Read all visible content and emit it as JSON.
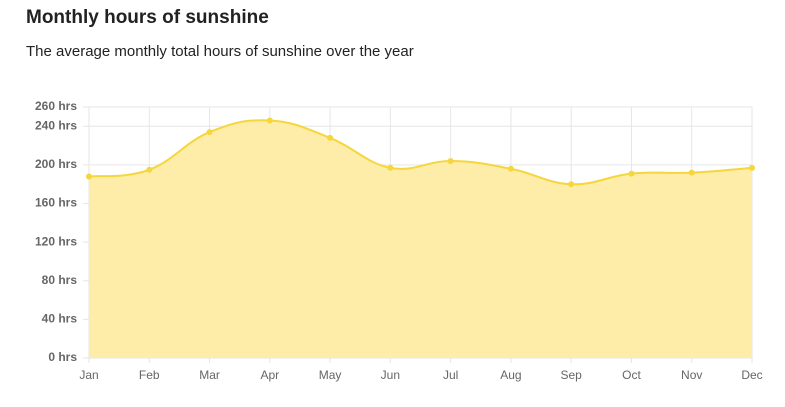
{
  "chart_data": {
    "type": "area",
    "title": "Monthly hours of sunshine",
    "subtitle": "The average monthly total hours of sunshine over the year",
    "categories": [
      "Jan",
      "Feb",
      "Mar",
      "Apr",
      "May",
      "Jun",
      "Jul",
      "Aug",
      "Sep",
      "Oct",
      "Nov",
      "Dec"
    ],
    "values": [
      188,
      195,
      234,
      246,
      228,
      197,
      204,
      196,
      180,
      191,
      192,
      197
    ],
    "color": "#f5d63d",
    "fill": "#fdeda8",
    "ylim": [
      0,
      260
    ],
    "yticks": [
      {
        "value": 0,
        "label": "0 hrs"
      },
      {
        "value": 40,
        "label": "40 hrs"
      },
      {
        "value": 80,
        "label": "80 hrs"
      },
      {
        "value": 120,
        "label": "120 hrs"
      },
      {
        "value": 160,
        "label": "160 hrs"
      },
      {
        "value": 200,
        "label": "200 hrs"
      },
      {
        "value": 240,
        "label": "240 hrs"
      },
      {
        "value": 260,
        "label": "260 hrs"
      }
    ],
    "grid": true
  }
}
